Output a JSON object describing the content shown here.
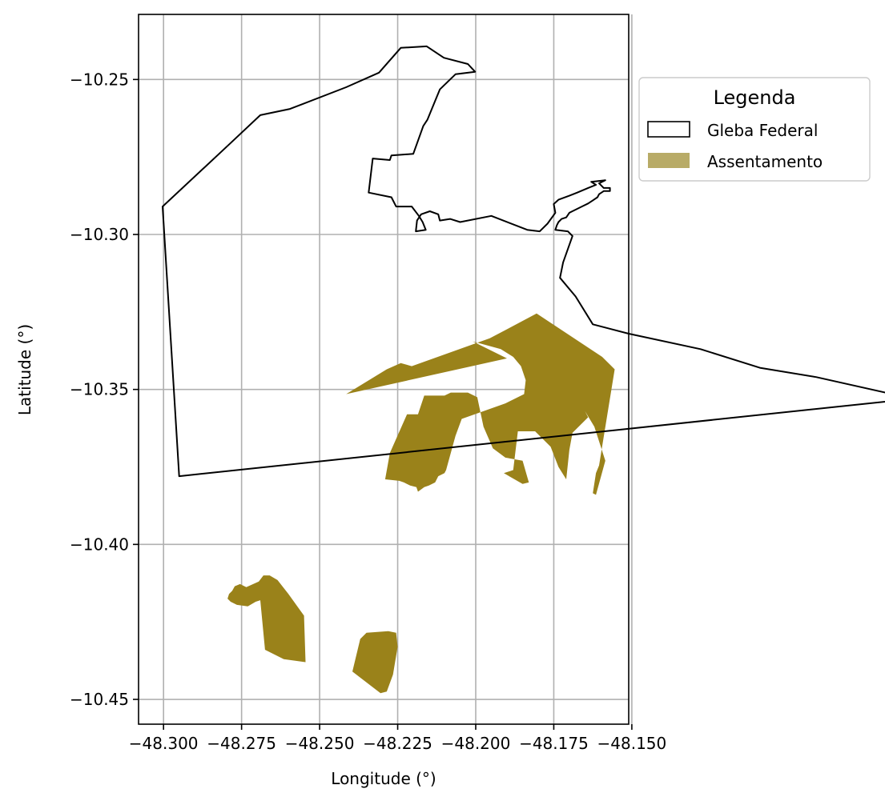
{
  "chart_data": {
    "type": "map",
    "xlabel": "Longitude (°)",
    "ylabel": "Latitude (°)",
    "xlim": [
      -48.308,
      -48.151
    ],
    "ylim": [
      -10.458,
      -10.229
    ],
    "x_ticks": [
      -48.3,
      -48.275,
      -48.25,
      -48.225,
      -48.2,
      -48.175,
      -48.15
    ],
    "x_tick_labels": [
      "−48.300",
      "−48.275",
      "−48.250",
      "−48.225",
      "−48.200",
      "−48.175",
      "−48.150"
    ],
    "y_ticks": [
      -10.25,
      -10.3,
      -10.35,
      -10.4,
      -10.45
    ],
    "y_tick_labels": [
      "−10.25",
      "−10.30",
      "−10.35",
      "−10.40",
      "−10.45"
    ],
    "grid": true,
    "legend": {
      "title": "Legenda",
      "placement": "outside-right-top",
      "entries": [
        {
          "label": "Gleba Federal",
          "style": "outline",
          "color": "#000000"
        },
        {
          "label": "Assentamento",
          "style": "fill",
          "color": "#b8ab67"
        }
      ]
    },
    "layers": [
      {
        "name": "Gleba Federal",
        "style": "outline",
        "stroke": "#000000",
        "polygons": [
          [
            [
              -48.3003,
              -10.291
            ],
            [
              -48.2785,
              -10.2705
            ],
            [
              -48.269,
              -10.2615
            ],
            [
              -48.2595,
              -10.2595
            ],
            [
              -48.2415,
              -10.2525
            ],
            [
              -48.231,
              -10.2478
            ],
            [
              -48.224,
              -10.2398
            ],
            [
              -48.2157,
              -10.2393
            ],
            [
              -48.2102,
              -10.243
            ],
            [
              -48.2025,
              -10.245
            ],
            [
              -48.2002,
              -10.2475
            ],
            [
              -48.2065,
              -10.2483
            ],
            [
              -48.2115,
              -10.2532
            ],
            [
              -48.2155,
              -10.263
            ],
            [
              -48.2168,
              -10.265
            ],
            [
              -48.22,
              -10.274
            ],
            [
              -48.227,
              -10.2745
            ],
            [
              -48.2275,
              -10.276
            ],
            [
              -48.233,
              -10.2755
            ],
            [
              -48.2343,
              -10.2865
            ],
            [
              -48.227,
              -10.288
            ],
            [
              -48.2255,
              -10.291
            ],
            [
              -48.2205,
              -10.291
            ],
            [
              -48.2182,
              -10.294
            ],
            [
              -48.217,
              -10.296
            ],
            [
              -48.216,
              -10.2985
            ],
            [
              -48.2192,
              -10.299
            ],
            [
              -48.2188,
              -10.2955
            ],
            [
              -48.2175,
              -10.2935
            ],
            [
              -48.2147,
              -10.2925
            ],
            [
              -48.212,
              -10.2935
            ],
            [
              -48.2115,
              -10.2955
            ],
            [
              -48.2082,
              -10.295
            ],
            [
              -48.205,
              -10.296
            ],
            [
              -48.195,
              -10.294
            ],
            [
              -48.1835,
              -10.2985
            ],
            [
              -48.1795,
              -10.299
            ],
            [
              -48.177,
              -10.2965
            ],
            [
              -48.1745,
              -10.293
            ],
            [
              -48.175,
              -10.2902
            ],
            [
              -48.1735,
              -10.2888
            ],
            [
              -48.17,
              -10.2875
            ],
            [
              -48.1675,
              -10.2865
            ],
            [
              -48.164,
              -10.285
            ],
            [
              -48.1615,
              -10.284
            ],
            [
              -48.163,
              -10.283
            ],
            [
              -48.1585,
              -10.2825
            ],
            [
              -48.1605,
              -10.2835
            ],
            [
              -48.159,
              -10.285
            ],
            [
              -48.157,
              -10.285
            ],
            [
              -48.157,
              -10.286
            ],
            [
              -48.159,
              -10.286
            ],
            [
              -48.1605,
              -10.287
            ],
            [
              -48.161,
              -10.288
            ],
            [
              -48.1625,
              -10.289
            ],
            [
              -48.164,
              -10.29
            ],
            [
              -48.166,
              -10.291
            ],
            [
              -48.168,
              -10.292
            ],
            [
              -48.17,
              -10.293
            ],
            [
              -48.171,
              -10.2945
            ],
            [
              -48.1725,
              -10.295
            ],
            [
              -48.1735,
              -10.296
            ],
            [
              -48.174,
              -10.297
            ],
            [
              -48.1745,
              -10.2985
            ],
            [
              -48.1705,
              -10.299
            ],
            [
              -48.169,
              -10.3005
            ],
            [
              -48.172,
              -10.309
            ],
            [
              -48.173,
              -10.314
            ],
            [
              -48.168,
              -10.32
            ],
            [
              -48.1625,
              -10.329
            ],
            [
              -48.151,
              -10.332
            ],
            [
              -48.128,
              -10.337
            ],
            [
              -48.109,
              -10.343
            ],
            [
              -48.091,
              -10.346
            ],
            [
              -48.06,
              -10.353
            ],
            [
              -48.295,
              -10.378
            ],
            [
              -48.3003,
              -10.291
            ]
          ]
        ]
      },
      {
        "name": "Assentamento",
        "style": "fill",
        "fill": "#9a821a",
        "polygons": [
          [
            [
              -48.2415,
              -10.3515
            ],
            [
              -48.2285,
              -10.3435
            ],
            [
              -48.224,
              -10.3415
            ],
            [
              -48.2205,
              -10.3425
            ],
            [
              -48.1955,
              -10.3335
            ],
            [
              -48.1805,
              -10.3255
            ],
            [
              -48.1595,
              -10.3395
            ],
            [
              -48.1555,
              -10.3435
            ],
            [
              -48.1605,
              -10.3745
            ],
            [
              -48.1615,
              -10.377
            ],
            [
              -48.1625,
              -10.3835
            ],
            [
              -48.1615,
              -10.384
            ],
            [
              -48.1585,
              -10.373
            ],
            [
              -48.162,
              -10.362
            ],
            [
              -48.165,
              -10.357
            ],
            [
              -48.169,
              -10.354
            ],
            [
              -48.17,
              -10.347
            ],
            [
              -48.164,
              -10.359
            ],
            [
              -48.169,
              -10.364
            ],
            [
              -48.17,
              -10.3695
            ],
            [
              -48.171,
              -10.379
            ],
            [
              -48.1735,
              -10.375
            ],
            [
              -48.176,
              -10.3685
            ],
            [
              -48.181,
              -10.3635
            ],
            [
              -48.1865,
              -10.3635
            ],
            [
              -48.188,
              -10.376
            ],
            [
              -48.191,
              -10.377
            ],
            [
              -48.185,
              -10.3805
            ],
            [
              -48.183,
              -10.38
            ],
            [
              -48.185,
              -10.373
            ],
            [
              -48.1905,
              -10.372
            ],
            [
              -48.1945,
              -10.369
            ],
            [
              -48.1975,
              -10.362
            ],
            [
              -48.1995,
              -10.3525
            ],
            [
              -48.2025,
              -10.351
            ],
            [
              -48.208,
              -10.351
            ],
            [
              -48.21,
              -10.352
            ],
            [
              -48.2165,
              -10.352
            ],
            [
              -48.2185,
              -10.358
            ],
            [
              -48.222,
              -10.358
            ],
            [
              -48.2275,
              -10.3705
            ],
            [
              -48.229,
              -10.379
            ],
            [
              -48.2245,
              -10.3795
            ],
            [
              -48.223,
              -10.38
            ],
            [
              -48.221,
              -10.381
            ],
            [
              -48.219,
              -10.3815
            ],
            [
              -48.2185,
              -10.383
            ],
            [
              -48.2165,
              -10.3815
            ],
            [
              -48.215,
              -10.381
            ],
            [
              -48.213,
              -10.38
            ],
            [
              -48.212,
              -10.378
            ],
            [
              -48.21,
              -10.377
            ],
            [
              -48.2095,
              -10.376
            ],
            [
              -48.2065,
              -10.365
            ],
            [
              -48.2045,
              -10.3595
            ],
            [
              -48.1905,
              -10.3545
            ],
            [
              -48.1845,
              -10.3515
            ],
            [
              -48.184,
              -10.347
            ],
            [
              -48.1855,
              -10.3425
            ],
            [
              -48.188,
              -10.3395
            ],
            [
              -48.192,
              -10.337
            ],
            [
              -48.201,
              -10.3345
            ],
            [
              -48.19,
              -10.34
            ],
            [
              -48.2415,
              -10.3515
            ]
          ],
          [
            [
              -48.2735,
              -10.4138
            ],
            [
              -48.2755,
              -10.4128
            ],
            [
              -48.2772,
              -10.4135
            ],
            [
              -48.278,
              -10.415
            ],
            [
              -48.279,
              -10.416
            ],
            [
              -48.2795,
              -10.4175
            ],
            [
              -48.2785,
              -10.4185
            ],
            [
              -48.2765,
              -10.4195
            ],
            [
              -48.273,
              -10.42
            ],
            [
              -48.2705,
              -10.4185
            ],
            [
              -48.269,
              -10.418
            ],
            [
              -48.2675,
              -10.434
            ],
            [
              -48.2615,
              -10.437
            ],
            [
              -48.2545,
              -10.438
            ],
            [
              -48.255,
              -10.423
            ],
            [
              -48.26,
              -10.416
            ],
            [
              -48.2635,
              -10.4115
            ],
            [
              -48.266,
              -10.41
            ],
            [
              -48.268,
              -10.41
            ],
            [
              -48.2695,
              -10.412
            ],
            [
              -48.2735,
              -10.4138
            ]
          ],
          [
            [
              -48.2255,
              -10.4285
            ],
            [
              -48.228,
              -10.428
            ],
            [
              -48.235,
              -10.4285
            ],
            [
              -48.237,
              -10.4305
            ],
            [
              -48.2395,
              -10.441
            ],
            [
              -48.2305,
              -10.448
            ],
            [
              -48.2285,
              -10.4475
            ],
            [
              -48.2265,
              -10.442
            ],
            [
              -48.225,
              -10.433
            ],
            [
              -48.2255,
              -10.4285
            ]
          ]
        ]
      }
    ]
  }
}
